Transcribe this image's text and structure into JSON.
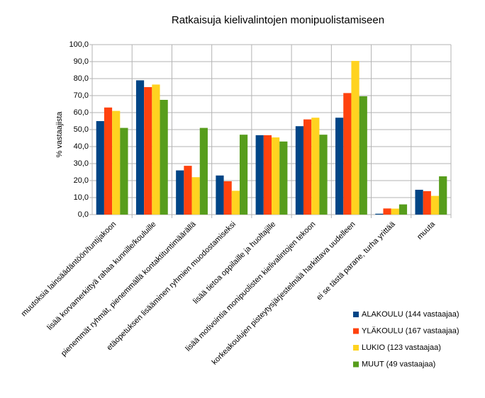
{
  "chart_data": {
    "type": "bar",
    "title": "Ratkaisuja kielivalintojen monipuolistamiseen",
    "y_label": "% vastaajista",
    "categories": [
      "muutoksia lainsäädäntöön/tuntijakoon",
      "lisää korvamerkittyä rahaa kunnille/kouluille",
      "pienemmät ryhmät, pienemmällä kontaktituntimäärällä",
      "etäopetuksen lisääminen ryhmien muodostamiseksi",
      "lisää tietoa oppilaille ja huoltajille",
      "lisää motivointia monipuolisten kielivalintojen tekoon",
      "korkeakoulujen pisteytysjärjestelmää harkittava uudelleen",
      "ei se tästä parane, turha yrittää",
      "muuta"
    ],
    "series": [
      {
        "name": "ALAKOULU (144 vastaajaa)",
        "color": "#004586",
        "values": [
          55,
          79,
          26,
          23,
          46.7,
          52,
          57,
          0.5,
          14.6
        ]
      },
      {
        "name": "YLÄKOULU (167 vastaajaa)",
        "color": "#ff420e",
        "values": [
          63,
          75,
          28.7,
          19.6,
          46.7,
          56,
          71.5,
          3.6,
          13.8
        ]
      },
      {
        "name": "LUKIO (123 vastaajaa)",
        "color": "#ffd320",
        "values": [
          61,
          76.5,
          22,
          14,
          45.4,
          57,
          90.4,
          3.5,
          11
        ]
      },
      {
        "name": "MUUT (49 vastaajaa)",
        "color": "#579d1c",
        "values": [
          51,
          67.5,
          51,
          47,
          43,
          47,
          69.6,
          6,
          22.5
        ]
      }
    ],
    "ylim": [
      0,
      100
    ],
    "yticks": [
      {
        "value": 0,
        "label": "0,0"
      },
      {
        "value": 10,
        "label": "10,0"
      },
      {
        "value": 20,
        "label": "20,0"
      },
      {
        "value": 30,
        "label": "30,0"
      },
      {
        "value": 40,
        "label": "40,0"
      },
      {
        "value": 50,
        "label": "50,0"
      },
      {
        "value": 60,
        "label": "60,0"
      },
      {
        "value": 70,
        "label": "70,0"
      },
      {
        "value": 80,
        "label": "80,0"
      },
      {
        "value": 90,
        "label": "90,0"
      },
      {
        "value": 100,
        "label": "100,0"
      }
    ],
    "grid": true,
    "legend": "right"
  }
}
